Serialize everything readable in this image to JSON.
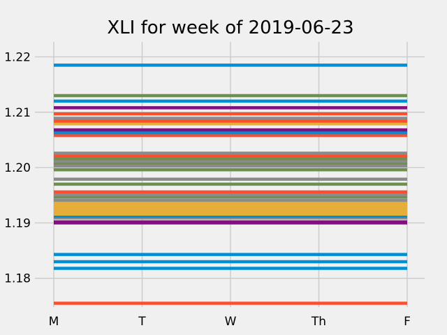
{
  "chart_data": {
    "type": "line",
    "title": "XLI for week of 2019-06-23",
    "xlabel": "",
    "ylabel": "",
    "categories": [
      "M",
      "T",
      "W",
      "Th",
      "F"
    ],
    "yticks": [
      "1.18",
      "1.19",
      "1.20",
      "1.21",
      "1.22"
    ],
    "ylim": [
      1.1748,
      1.2227
    ],
    "grid": true,
    "legend": "none",
    "series": [
      {
        "color": "#fc4f30",
        "values": [
          1.1755,
          1.1755,
          1.1755,
          1.1755,
          1.1755
        ]
      },
      {
        "color": "#008fd5",
        "values": [
          1.1818,
          1.1818,
          1.1818,
          1.1818,
          1.1818
        ]
      },
      {
        "color": "#008fd5",
        "values": [
          1.183,
          1.183,
          1.183,
          1.183,
          1.183
        ]
      },
      {
        "color": "#008fd5",
        "values": [
          1.1843,
          1.1843,
          1.1843,
          1.1843,
          1.1843
        ]
      },
      {
        "color": "#810f7c",
        "values": [
          1.19,
          1.19,
          1.19,
          1.19,
          1.19
        ]
      },
      {
        "color": "#810f7c",
        "values": [
          1.1902,
          1.1902,
          1.1902,
          1.1902,
          1.1902
        ]
      },
      {
        "color": "#8b8b8b",
        "values": [
          1.1909,
          1.1909,
          1.1909,
          1.1909,
          1.1909
        ]
      },
      {
        "color": "#008fd5",
        "values": [
          1.1912,
          1.1912,
          1.1912,
          1.1912,
          1.1912
        ]
      },
      {
        "color": "#e5ae38",
        "values": [
          1.1916,
          1.1916,
          1.1916,
          1.1916,
          1.1916
        ]
      },
      {
        "color": "#e5ae38",
        "values": [
          1.192,
          1.192,
          1.192,
          1.192,
          1.192
        ]
      },
      {
        "color": "#e5ae38",
        "values": [
          1.1924,
          1.1924,
          1.1924,
          1.1924,
          1.1924
        ]
      },
      {
        "color": "#e5ae38",
        "values": [
          1.1928,
          1.1928,
          1.1928,
          1.1928,
          1.1928
        ]
      },
      {
        "color": "#e5ae38",
        "values": [
          1.1932,
          1.1932,
          1.1932,
          1.1932,
          1.1932
        ]
      },
      {
        "color": "#e5ae38",
        "values": [
          1.1936,
          1.1936,
          1.1936,
          1.1936,
          1.1936
        ]
      },
      {
        "color": "#8b8b8b",
        "values": [
          1.1941,
          1.1941,
          1.1941,
          1.1941,
          1.1941
        ]
      },
      {
        "color": "#6d904f",
        "values": [
          1.1947,
          1.1947,
          1.1947,
          1.1947,
          1.1947
        ]
      },
      {
        "color": "#8b8b8b",
        "values": [
          1.1951,
          1.1951,
          1.1951,
          1.1951,
          1.1951
        ]
      },
      {
        "color": "#fc4f30",
        "values": [
          1.1956,
          1.1956,
          1.1956,
          1.1956,
          1.1956
        ]
      },
      {
        "color": "#6d904f",
        "values": [
          1.197,
          1.197,
          1.197,
          1.197,
          1.197
        ]
      },
      {
        "color": "#8b8b8b",
        "values": [
          1.1979,
          1.1979,
          1.1979,
          1.1979,
          1.1979
        ]
      },
      {
        "color": "#6d904f",
        "values": [
          1.1996,
          1.1996,
          1.1996,
          1.1996,
          1.1996
        ]
      },
      {
        "color": "#8b8b8b",
        "values": [
          1.2003,
          1.2003,
          1.2003,
          1.2003,
          1.2003
        ]
      },
      {
        "color": "#6d904f",
        "values": [
          1.2008,
          1.2008,
          1.2008,
          1.2008,
          1.2008
        ]
      },
      {
        "color": "#8b8b8b",
        "values": [
          1.2012,
          1.2012,
          1.2012,
          1.2012,
          1.2012
        ]
      },
      {
        "color": "#6d904f",
        "values": [
          1.2016,
          1.2016,
          1.2016,
          1.2016,
          1.2016
        ]
      },
      {
        "color": "#fc4f30",
        "values": [
          1.2021,
          1.2021,
          1.2021,
          1.2021,
          1.2021
        ]
      },
      {
        "color": "#8b8b8b",
        "values": [
          1.2026,
          1.2026,
          1.2026,
          1.2026,
          1.2026
        ]
      },
      {
        "color": "#fc4f30",
        "values": [
          1.2058,
          1.2058,
          1.2058,
          1.2058,
          1.2058
        ]
      },
      {
        "color": "#008fd5",
        "values": [
          1.2063,
          1.2063,
          1.2063,
          1.2063,
          1.2063
        ]
      },
      {
        "color": "#810f7c",
        "values": [
          1.2068,
          1.2068,
          1.2068,
          1.2068,
          1.2068
        ]
      },
      {
        "color": "#e5ae38",
        "values": [
          1.2079,
          1.2079,
          1.2079,
          1.2079,
          1.2079
        ]
      },
      {
        "color": "#fc4f30",
        "values": [
          1.2084,
          1.2084,
          1.2084,
          1.2084,
          1.2084
        ]
      },
      {
        "color": "#8b8b8b",
        "values": [
          1.2089,
          1.2089,
          1.2089,
          1.2089,
          1.2089
        ]
      },
      {
        "color": "#fc4f30",
        "values": [
          1.2097,
          1.2097,
          1.2097,
          1.2097,
          1.2097
        ]
      },
      {
        "color": "#810f7c",
        "values": [
          1.2108,
          1.2108,
          1.2108,
          1.2108,
          1.2108
        ]
      },
      {
        "color": "#008fd5",
        "values": [
          1.212,
          1.212,
          1.212,
          1.212,
          1.212
        ]
      },
      {
        "color": "#6d904f",
        "values": [
          1.213,
          1.213,
          1.213,
          1.213,
          1.213
        ]
      },
      {
        "color": "#008fd5",
        "values": [
          1.2185,
          1.2185,
          1.2185,
          1.2185,
          1.2185
        ]
      }
    ]
  }
}
